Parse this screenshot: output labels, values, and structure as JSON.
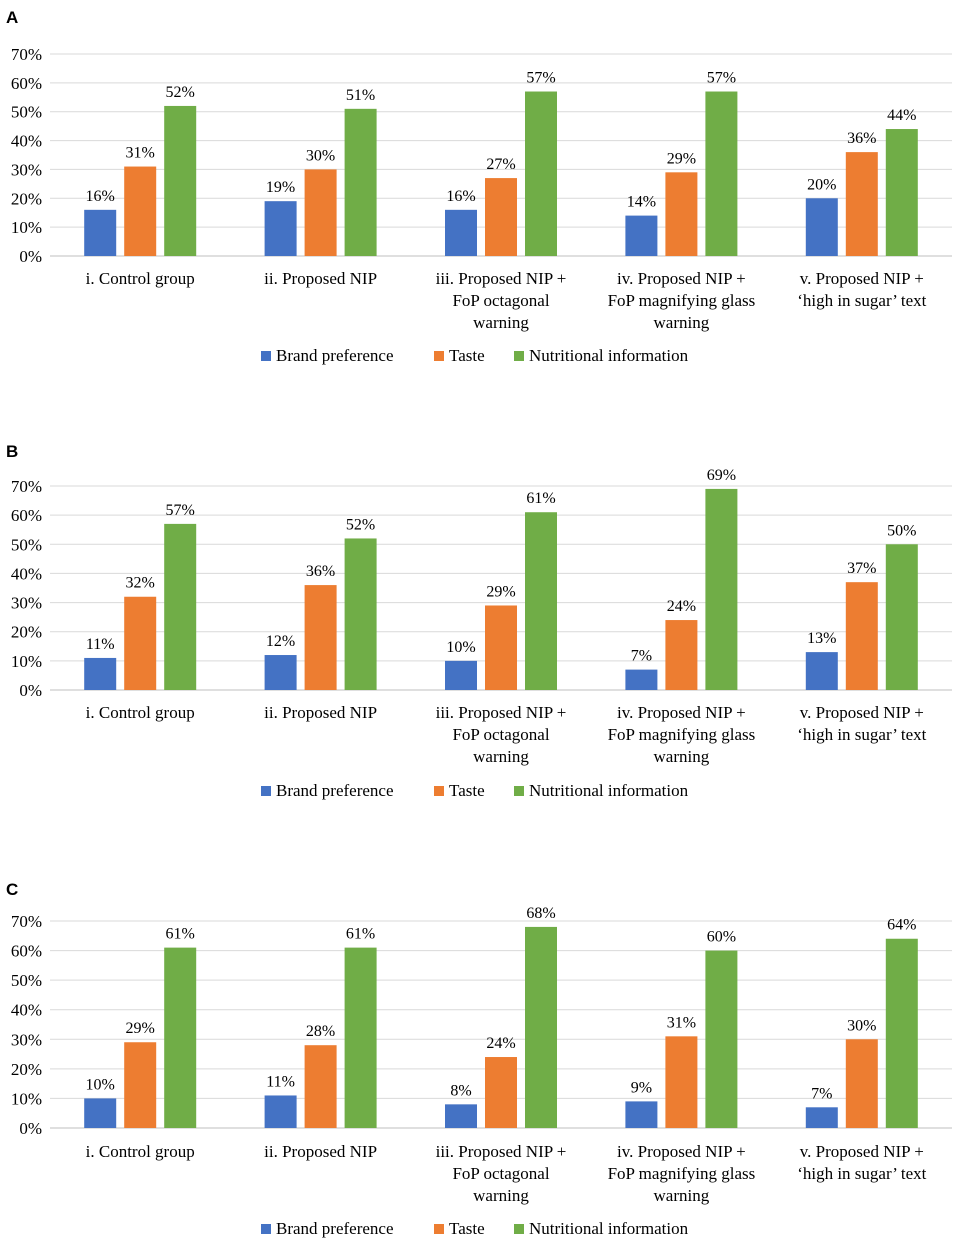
{
  "chart_data": [
    {
      "panel": "A",
      "type": "bar",
      "categories": [
        [
          "i. Control group"
        ],
        [
          "ii. Proposed NIP"
        ],
        [
          "iii. Proposed NIP +",
          "FoP octagonal",
          "warning"
        ],
        [
          "iv. Proposed NIP +",
          "FoP magnifying glass",
          "warning"
        ],
        [
          "v. Proposed NIP +",
          "‘high in sugar’ text"
        ]
      ],
      "series": [
        {
          "name": "Brand preference",
          "values": [
            16,
            19,
            16,
            14,
            20
          ],
          "labels": [
            "16%",
            "19%",
            "16%",
            "14%",
            "20%"
          ]
        },
        {
          "name": "Taste",
          "values": [
            31,
            30,
            27,
            29,
            36
          ],
          "labels": [
            "31%",
            "30%",
            "27%",
            "29%",
            "36%"
          ]
        },
        {
          "name": "Nutritional information",
          "values": [
            52,
            51,
            57,
            57,
            44
          ],
          "labels": [
            "52%",
            "51%",
            "57%",
            "57%",
            "44%"
          ]
        }
      ],
      "yticks": [
        "0%",
        "10%",
        "20%",
        "30%",
        "40%",
        "50%",
        "60%",
        "70%"
      ],
      "ylim": [
        0,
        70
      ],
      "gridlines": true,
      "legend": "bottom"
    },
    {
      "panel": "B",
      "type": "bar",
      "categories": [
        [
          "i. Control group"
        ],
        [
          "ii. Proposed NIP"
        ],
        [
          "iii. Proposed NIP +",
          "FoP octagonal",
          "warning"
        ],
        [
          "iv. Proposed NIP +",
          "FoP magnifying glass",
          "warning"
        ],
        [
          "v. Proposed NIP +",
          "‘high in sugar’ text"
        ]
      ],
      "series": [
        {
          "name": "Brand preference",
          "values": [
            11,
            12,
            10,
            7,
            13
          ],
          "labels": [
            "11%",
            "12%",
            "10%",
            "7%",
            "13%"
          ]
        },
        {
          "name": "Taste",
          "values": [
            32,
            36,
            29,
            24,
            37
          ],
          "labels": [
            "32%",
            "36%",
            "29%",
            "24%",
            "37%"
          ]
        },
        {
          "name": "Nutritional information",
          "values": [
            57,
            52,
            61,
            69,
            50
          ],
          "labels": [
            "57%",
            "52%",
            "61%",
            "69%",
            "50%"
          ]
        }
      ],
      "yticks": [
        "0%",
        "10%",
        "20%",
        "30%",
        "40%",
        "50%",
        "60%",
        "70%"
      ],
      "ylim": [
        0,
        70
      ],
      "gridlines": true,
      "legend": "bottom"
    },
    {
      "panel": "C",
      "type": "bar",
      "categories": [
        [
          "i. Control group"
        ],
        [
          "ii. Proposed NIP"
        ],
        [
          "iii. Proposed NIP +",
          "FoP octagonal",
          "warning"
        ],
        [
          "iv. Proposed NIP +",
          "FoP magnifying glass",
          "warning"
        ],
        [
          "v. Proposed NIP +",
          "‘high in sugar’ text"
        ]
      ],
      "series": [
        {
          "name": "Brand preference",
          "values": [
            10,
            11,
            8,
            9,
            7
          ],
          "labels": [
            "10%",
            "11%",
            "8%",
            "9%",
            "7%"
          ]
        },
        {
          "name": "Taste",
          "values": [
            29,
            28,
            24,
            31,
            30
          ],
          "labels": [
            "29%",
            "28%",
            "24%",
            "31%",
            "30%"
          ]
        },
        {
          "name": "Nutritional information",
          "values": [
            61,
            61,
            68,
            60,
            64
          ],
          "labels": [
            "61%",
            "61%",
            "68%",
            "60%",
            "64%"
          ]
        }
      ],
      "yticks": [
        "0%",
        "10%",
        "20%",
        "30%",
        "40%",
        "50%",
        "60%",
        "70%"
      ],
      "ylim": [
        0,
        70
      ],
      "gridlines": true,
      "legend": "bottom"
    }
  ],
  "colors": {
    "Brand preference": "#4472c4",
    "Taste": "#ed7d31",
    "Nutritional information": "#70ad47"
  }
}
